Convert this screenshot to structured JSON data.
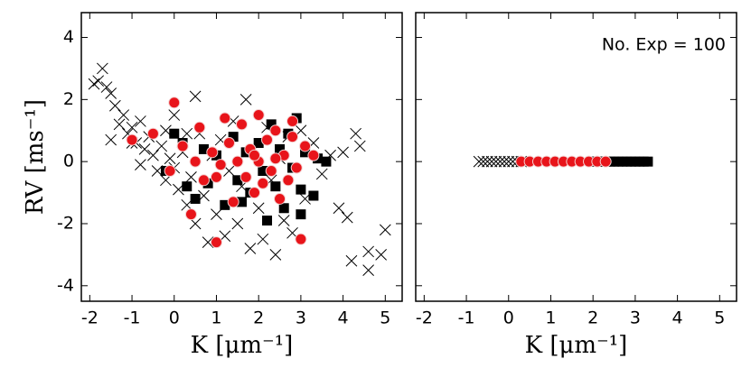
{
  "chart_data": [
    {
      "type": "scatter",
      "ylabel": "RV [ms⁻¹]",
      "xlabel": "K [μm⁻¹]",
      "xlim": [
        -2.2,
        5.4
      ],
      "ylim": [
        -4.5,
        4.8
      ],
      "xticks": [
        -2,
        -1,
        0,
        1,
        2,
        3,
        4,
        5
      ],
      "yticks": [
        -4,
        -2,
        0,
        2,
        4
      ],
      "ytick_labels": true,
      "series": [
        {
          "marker": "x",
          "color": "#000000",
          "x": [
            -1.8,
            -1.7,
            -1.6,
            -1.5,
            -1.9,
            -1.4,
            -1.3,
            -1.2,
            -1.1,
            -1.0,
            -0.9,
            -0.8,
            -0.7,
            -0.6,
            -0.5,
            -0.4,
            -0.3,
            -0.2,
            -0.1,
            0,
            0.1,
            0.2,
            0.3,
            0.4,
            0.5,
            0.5,
            0.6,
            0.7,
            0.8,
            0.9,
            1.0,
            1.1,
            1.2,
            1.3,
            1.4,
            1.5,
            1.6,
            1.7,
            1.8,
            1.9,
            2.0,
            2.1,
            2.2,
            2.3,
            2.4,
            2.5,
            2.6,
            2.7,
            2.8,
            3.0,
            3.1,
            3.3,
            3.5,
            3.7,
            3.9,
            4.0,
            4.1,
            4.2,
            4.3,
            4.4,
            4.6,
            4.6,
            4.9,
            5.0,
            -1.5,
            -0.8,
            0.0,
            0.3,
            -0.2,
            -1.0
          ],
          "values": [
            2.6,
            3.0,
            2.4,
            2.2,
            2.5,
            1.8,
            1.2,
            1.5,
            0.9,
            1.1,
            0.6,
            1.3,
            0.4,
            0.8,
            0.2,
            -0.3,
            0.5,
            -0.6,
            0.1,
            -0.2,
            -0.9,
            0.3,
            -1.4,
            -0.5,
            2.1,
            -2.0,
            0.9,
            -1.1,
            -2.6,
            0.2,
            -1.7,
            0.7,
            -2.4,
            -0.3,
            1.3,
            -2.0,
            -0.8,
            2.0,
            -2.8,
            0.4,
            -1.5,
            -2.5,
            1.1,
            -0.6,
            -3.0,
            0.1,
            -1.9,
            0.8,
            -2.3,
            1.0,
            -1.2,
            0.6,
            -0.4,
            0.2,
            -1.5,
            0.3,
            -1.8,
            -3.2,
            0.9,
            0.5,
            -2.9,
            -3.5,
            -3.0,
            -2.2,
            0.7,
            -0.1,
            1.5,
            0.9,
            1.0,
            0.6
          ]
        },
        {
          "marker": "s",
          "color": "#000000",
          "x": [
            0,
            0.2,
            0.5,
            0.7,
            0.8,
            1.0,
            1.2,
            1.4,
            1.5,
            1.7,
            1.8,
            2.0,
            2.1,
            2.3,
            2.4,
            2.5,
            2.6,
            2.7,
            2.8,
            2.9,
            3.0,
            3.1,
            3.3,
            3.4,
            3.6,
            2.2,
            3.0,
            -0.2,
            0.3,
            1.6
          ],
          "values": [
            0.9,
            0.6,
            -1.2,
            0.4,
            -0.7,
            0.2,
            -1.4,
            0.8,
            -0.6,
            0.3,
            -1.0,
            0.6,
            -0.3,
            1.2,
            -0.8,
            0.4,
            -1.5,
            0.9,
            -0.2,
            1.4,
            -0.9,
            0.3,
            -1.1,
            0.1,
            0.0,
            -1.9,
            -1.7,
            -0.3,
            -0.8,
            -1.3
          ]
        },
        {
          "marker": "o",
          "color": "#e8141a",
          "x": [
            -1.0,
            -0.5,
            -0.1,
            0.0,
            0.2,
            0.4,
            0.5,
            0.7,
            0.9,
            1.0,
            1.1,
            1.3,
            1.4,
            1.5,
            1.6,
            1.7,
            1.8,
            1.9,
            2.0,
            2.0,
            2.1,
            2.2,
            2.3,
            2.4,
            2.5,
            2.6,
            2.7,
            2.8,
            2.9,
            3.0,
            3.1,
            3.3,
            0.6,
            1.2,
            2.8,
            1.9,
            2.4,
            1.0
          ],
          "values": [
            0.7,
            0.9,
            -0.3,
            1.9,
            0.5,
            -1.7,
            0.0,
            -0.6,
            0.3,
            -2.6,
            -0.1,
            0.6,
            -1.3,
            0.0,
            1.2,
            -0.5,
            0.4,
            -1.0,
            1.5,
            0.0,
            -0.7,
            0.7,
            -0.3,
            1.0,
            -1.2,
            0.2,
            -0.6,
            0.8,
            -0.2,
            -2.5,
            0.5,
            0.2,
            1.1,
            1.4,
            1.3,
            0.2,
            0.1,
            -0.5
          ]
        }
      ]
    },
    {
      "type": "scatter",
      "xlabel": "K [μm⁻¹]",
      "annotation": "No. Exp = 100",
      "xlim": [
        -2.2,
        5.4
      ],
      "ylim": [
        -4.5,
        4.8
      ],
      "xticks": [
        -2,
        -1,
        0,
        1,
        2,
        3,
        4,
        5
      ],
      "yticks": [
        -4,
        -2,
        0,
        2,
        4
      ],
      "ytick_labels": false,
      "series": [
        {
          "marker": "x",
          "color": "#000000",
          "x": [
            -0.7,
            -0.6,
            -0.5,
            -0.4,
            -0.3,
            -0.2,
            -0.1,
            0.0,
            0.1,
            0.2,
            0.3,
            0.4
          ],
          "values": [
            0,
            0,
            0,
            0,
            0,
            0,
            0,
            0,
            0,
            0,
            0,
            0
          ]
        },
        {
          "marker": "s",
          "color": "#000000",
          "x": [
            2.0,
            2.1,
            2.2,
            2.3,
            2.4,
            2.5,
            2.6,
            2.7,
            2.8,
            2.9,
            3.0,
            3.1,
            3.2,
            3.3
          ],
          "values": [
            0,
            0,
            0,
            0,
            0,
            0,
            0,
            0,
            0,
            0,
            0,
            0,
            0,
            0
          ]
        },
        {
          "marker": "o",
          "color": "#e8141a",
          "x": [
            0.3,
            0.5,
            0.7,
            0.9,
            1.1,
            1.3,
            1.5,
            1.7,
            1.9,
            2.1,
            2.3
          ],
          "values": [
            0,
            0,
            0,
            0,
            0,
            0,
            0,
            0,
            0,
            0,
            0
          ]
        }
      ]
    }
  ]
}
